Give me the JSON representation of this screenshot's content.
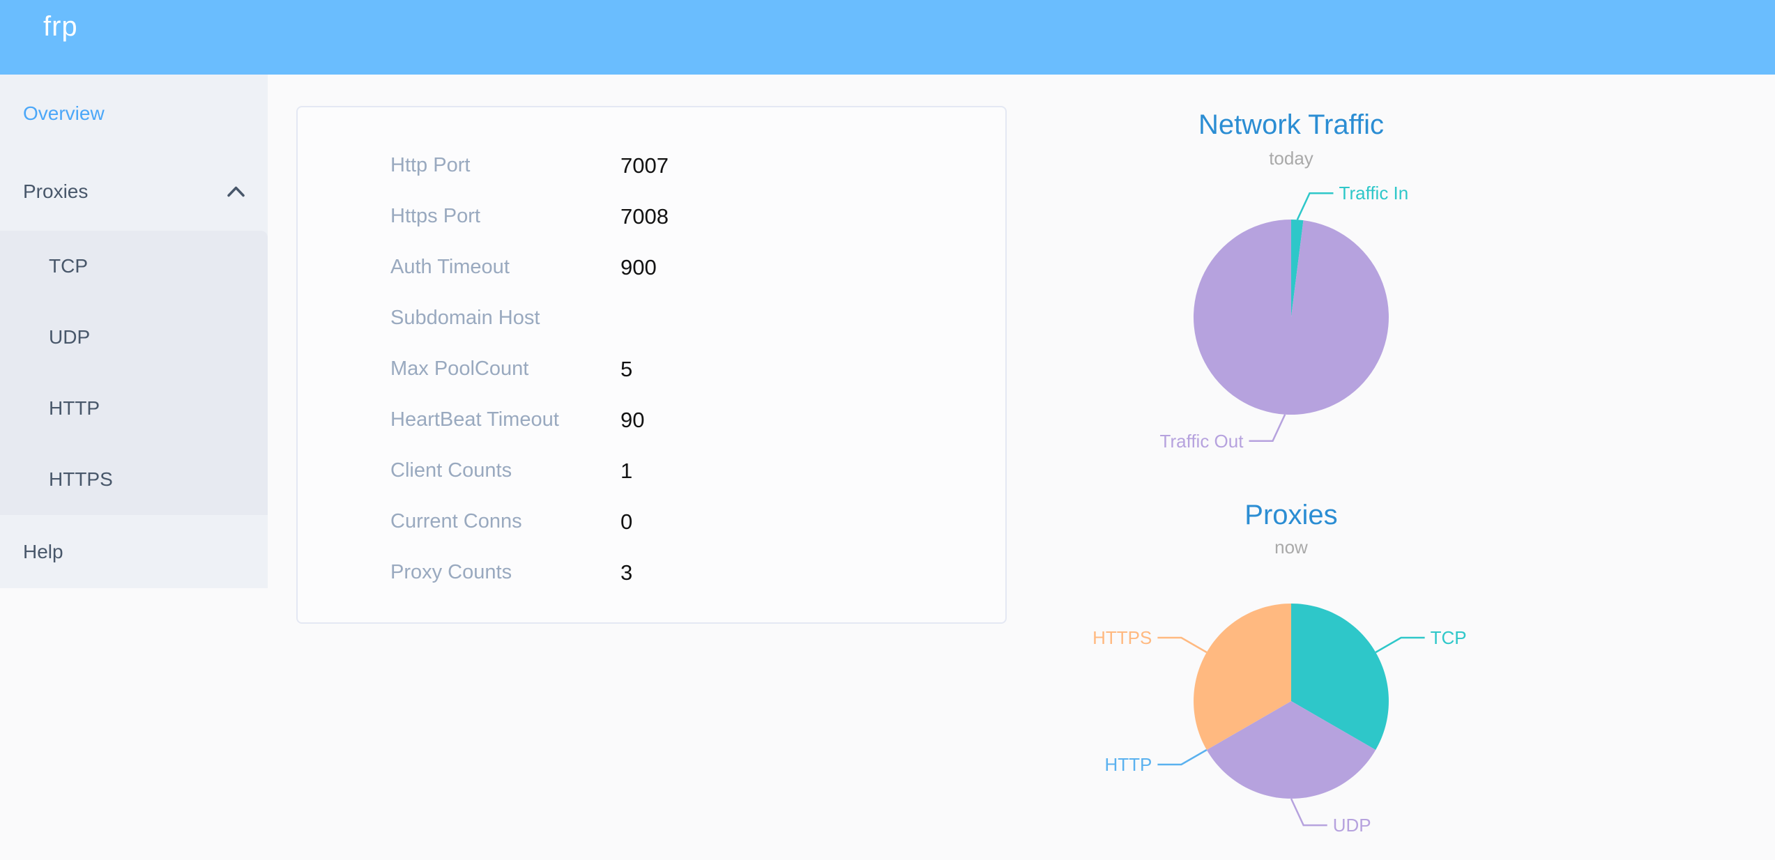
{
  "app": {
    "logo_text": "frp"
  },
  "colors": {
    "header_bg": "#6abdfe",
    "page_bg": "#fafafb",
    "sidebar_bg": "#eef1f6",
    "submenu_bg": "#e7eaf1",
    "sidebar_text": "#48576a",
    "active_item_text": "#4ba7f8",
    "card_border": "#e4e8f3",
    "table_label": "#99a9bf",
    "table_value": "#121212",
    "chart_title": "#2b8dd3",
    "chart_subtitle": "#a9a9a9",
    "teal": "#2ec7c9",
    "purple": "#b6a2de",
    "blue": "#5ab1ef",
    "orange": "#ffb980"
  },
  "sidebar": {
    "items": [
      {
        "label": "Overview",
        "active": true
      },
      {
        "label": "Proxies",
        "expanded": true,
        "children": [
          "TCP",
          "UDP",
          "HTTP",
          "HTTPS"
        ]
      },
      {
        "label": "Help"
      }
    ]
  },
  "server_info": {
    "rows": [
      {
        "label": "Http Port",
        "value": "7007"
      },
      {
        "label": "Https Port",
        "value": "7008"
      },
      {
        "label": "Auth Timeout",
        "value": "900"
      },
      {
        "label": "Subdomain Host",
        "value": ""
      },
      {
        "label": "Max PoolCount",
        "value": "5"
      },
      {
        "label": "HeartBeat Timeout",
        "value": "90"
      },
      {
        "label": "Client Counts",
        "value": "1"
      },
      {
        "label": "Current Conns",
        "value": "0"
      },
      {
        "label": "Proxy Counts",
        "value": "3"
      }
    ]
  },
  "chart_data": [
    {
      "type": "pie",
      "title": "Network Traffic",
      "subtitle": "today",
      "legend": "none",
      "labels": "leader-line",
      "values_unit": "percent, estimated from slice angles",
      "series": [
        {
          "name": "Traffic In",
          "value": 2,
          "color": "#2ec7c9"
        },
        {
          "name": "Traffic Out",
          "value": 98,
          "color": "#b6a2de"
        }
      ]
    },
    {
      "type": "pie",
      "title": "Proxies",
      "subtitle": "now",
      "legend": "none",
      "labels": "leader-line",
      "values_unit": "proxy count",
      "series": [
        {
          "name": "TCP",
          "value": 1,
          "color": "#2ec7c9"
        },
        {
          "name": "UDP",
          "value": 1,
          "color": "#b6a2de"
        },
        {
          "name": "HTTP",
          "value": 0,
          "color": "#5ab1ef"
        },
        {
          "name": "HTTPS",
          "value": 1,
          "color": "#ffb980"
        }
      ]
    }
  ]
}
